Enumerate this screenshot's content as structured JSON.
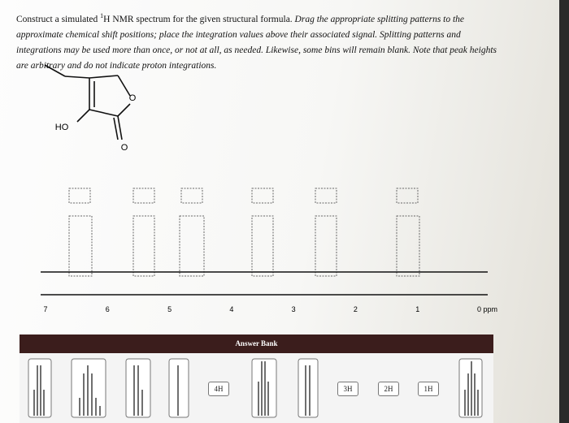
{
  "instructions": {
    "lead": "Construct a simulated ",
    "superscript": "1",
    "after": "H NMR spectrum for the given structural formula. ",
    "italic": "Drag the appropriate splitting patterns to the approximate chemical shift positions; place the integration values above their associated signal. Splitting patterns and integrations may be used more than once, or not at all, as needed. Likewise, some bins will remain blank. Note that peak heights are arbitrary and do not indicate proton integrations."
  },
  "molecule": {
    "ring_oxygen": "O",
    "hydroxyl": "HO",
    "carbonyl_oxygen": "O"
  },
  "axis": {
    "labels": [
      "7",
      "6",
      "5",
      "4",
      "3",
      "2",
      "1",
      "0 ppm"
    ]
  },
  "answer_bank": {
    "title": "Answer Bank",
    "integrations": [
      "4H",
      "3H",
      "2H",
      "1H"
    ]
  }
}
